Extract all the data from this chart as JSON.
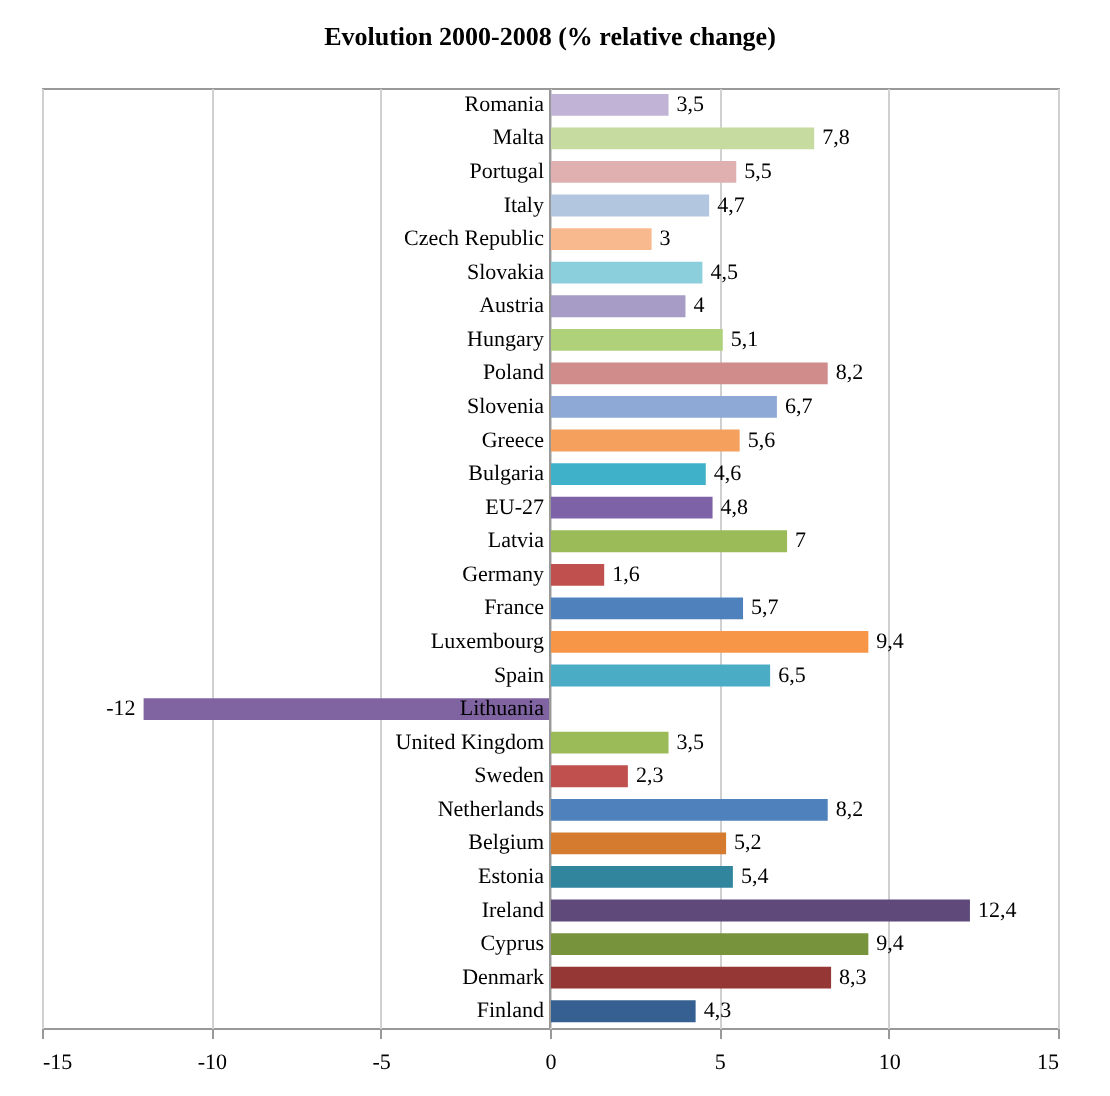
{
  "chart_data": {
    "type": "bar",
    "orientation": "horizontal",
    "title": "Evolution 2000-2008 (% relative change)",
    "categories": [
      "Romania",
      "Malta",
      "Portugal",
      "Italy",
      "Czech Republic",
      "Slovakia",
      "Austria",
      "Hungary",
      "Poland",
      "Slovenia",
      "Greece",
      "Bulgaria",
      "EU-27",
      "Latvia",
      "Germany",
      "France",
      "Luxembourg",
      "Spain",
      "Lithuania",
      "United Kingdom",
      "Sweden",
      "Netherlands",
      "Belgium",
      "Estonia",
      "Ireland",
      "Cyprus",
      "Denmark",
      "Finland"
    ],
    "values": [
      3.5,
      7.8,
      5.5,
      4.7,
      3,
      4.5,
      4,
      5.1,
      8.2,
      6.7,
      5.6,
      4.6,
      4.8,
      7,
      1.6,
      5.7,
      9.4,
      6.5,
      -12,
      3.5,
      2.3,
      8.2,
      5.2,
      5.4,
      12.4,
      9.4,
      8.3,
      4.3
    ],
    "value_labels": [
      "3,5",
      "7,8",
      "5,5",
      "4,7",
      "3",
      "4,5",
      "4",
      "5,1",
      "8,2",
      "6,7",
      "5,6",
      "4,6",
      "4,8",
      "7",
      "1,6",
      "5,7",
      "9,4",
      "6,5",
      "-12",
      "3,5",
      "2,3",
      "8,2",
      "5,2",
      "5,4",
      "12,4",
      "9,4",
      "8,3",
      "4,3"
    ],
    "colors": [
      "#c0b3d6",
      "#c5dba0",
      "#e0b0b0",
      "#b3c6e0",
      "#f9b98f",
      "#8ccfdc",
      "#a79cc6",
      "#aed17a",
      "#d08b8b",
      "#8ea9d6",
      "#f6a05e",
      "#3fb1c9",
      "#7e62a8",
      "#9bbb59",
      "#c0504d",
      "#4f81bd",
      "#f79646",
      "#4bacc6",
      "#8064a2",
      "#9bbb59",
      "#c0504d",
      "#4f81bd",
      "#d47b2f",
      "#31859c",
      "#5f497a",
      "#77933c",
      "#953735",
      "#376092"
    ],
    "xlim": [
      -15,
      15
    ],
    "xticks": [
      -15,
      -10,
      -5,
      0,
      5,
      10,
      15
    ],
    "grid": "x"
  }
}
